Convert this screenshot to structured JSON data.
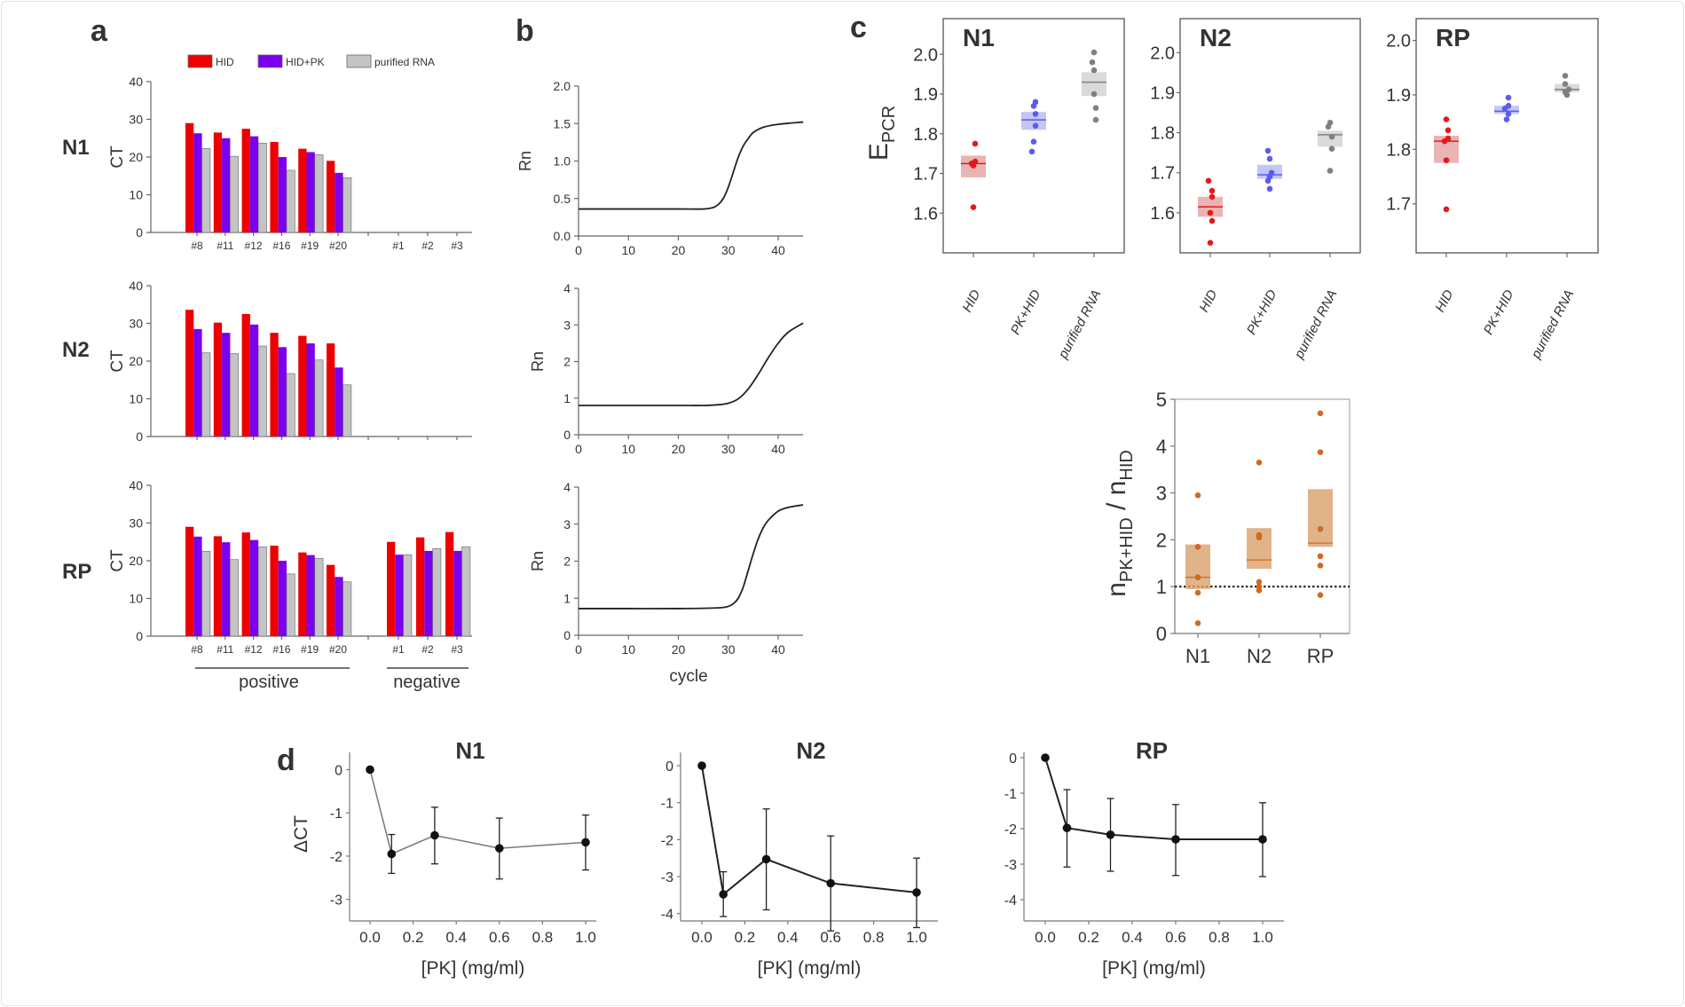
{
  "panel_labels": {
    "a": "a",
    "b": "b",
    "c": "c",
    "d": "d"
  },
  "colors": {
    "HID": "#ee0000",
    "HID+PK": "#7a00ee",
    "purified RNA": "#c4c4c4",
    "ratio": "#d2691e",
    "ratio_box": "#d9a06b",
    "line": "#111111"
  },
  "chart_data": [
    {
      "id": "a",
      "type": "bar",
      "legend": [
        "HID",
        "HID+PK",
        "purified RNA"
      ],
      "legend_placement": "top",
      "categories": [
        "#8",
        "#11",
        "#12",
        "#16",
        "#19",
        "#20",
        "#1",
        "#2",
        "#3"
      ],
      "groups": [
        {
          "label": "positive",
          "categories": [
            "#8",
            "#11",
            "#12",
            "#16",
            "#19",
            "#20"
          ]
        },
        {
          "label": "negative",
          "categories": [
            "#1",
            "#2",
            "#3"
          ]
        }
      ],
      "ylabel": "CT",
      "ylim": [
        0,
        40
      ],
      "yticks": [
        0,
        10,
        20,
        30,
        40
      ],
      "panels": [
        {
          "name": "N1",
          "series": [
            {
              "name": "HID",
              "values": [
                29,
                26.5,
                27.5,
                24,
                22.2,
                19,
                null,
                null,
                null
              ]
            },
            {
              "name": "HID+PK",
              "values": [
                26.3,
                25,
                25.5,
                20,
                21.3,
                15.8,
                null,
                null,
                null
              ]
            },
            {
              "name": "purified RNA",
              "values": [
                22.3,
                20.2,
                23.7,
                16.5,
                20.6,
                14.5,
                null,
                null,
                null
              ]
            }
          ]
        },
        {
          "name": "N2",
          "series": [
            {
              "name": "HID",
              "values": [
                33.6,
                30.2,
                32.5,
                27.5,
                26.7,
                24.7,
                null,
                null,
                null
              ]
            },
            {
              "name": "HID+PK",
              "values": [
                28.5,
                27.5,
                29.7,
                23.7,
                24.7,
                18.3,
                null,
                null,
                null
              ]
            },
            {
              "name": "purified RNA",
              "values": [
                22.2,
                22,
                24,
                16.7,
                20.3,
                13.7,
                null,
                null,
                null
              ]
            }
          ]
        },
        {
          "name": "RP",
          "series": [
            {
              "name": "HID",
              "values": [
                29,
                26.5,
                27.5,
                24,
                22.2,
                18.9,
                25,
                26.2,
                27.6
              ]
            },
            {
              "name": "HID+PK",
              "values": [
                26.4,
                24.9,
                25.5,
                20,
                21.5,
                15.7,
                21.6,
                22.6,
                22.6
              ]
            },
            {
              "name": "purified RNA",
              "values": [
                22.5,
                20.3,
                23.7,
                16.5,
                20.6,
                14.4,
                21.6,
                23.2,
                23.7
              ]
            }
          ]
        }
      ]
    },
    {
      "id": "b",
      "type": "line",
      "xlabel": "cycle",
      "ylabel": "Rn",
      "xlim": [
        0,
        45
      ],
      "xticks": [
        0,
        10,
        20,
        30,
        40
      ],
      "panels": [
        {
          "ylim": [
            0,
            2
          ],
          "yticks": [
            "0.0",
            "0.5",
            "1.0",
            "1.5",
            "2.0"
          ],
          "x": [
            0,
            10,
            20,
            25,
            27,
            28,
            29,
            30,
            31,
            32,
            33,
            34,
            35,
            37,
            40,
            45
          ],
          "y": [
            0.36,
            0.36,
            0.36,
            0.36,
            0.38,
            0.42,
            0.5,
            0.65,
            0.85,
            1.05,
            1.2,
            1.3,
            1.38,
            1.45,
            1.49,
            1.52
          ]
        },
        {
          "ylim": [
            0,
            4
          ],
          "yticks": [
            "0",
            "1",
            "2",
            "3",
            "4"
          ],
          "x": [
            0,
            10,
            20,
            25,
            28,
            30,
            32,
            34,
            36,
            38,
            40,
            42,
            45
          ],
          "y": [
            0.8,
            0.8,
            0.8,
            0.8,
            0.82,
            0.86,
            0.98,
            1.25,
            1.65,
            2.1,
            2.5,
            2.8,
            3.05
          ]
        },
        {
          "ylim": [
            0,
            4
          ],
          "yticks": [
            "0",
            "1",
            "2",
            "3",
            "4"
          ],
          "x": [
            0,
            10,
            20,
            28,
            30,
            31,
            32,
            33,
            34,
            35,
            36,
            37,
            38,
            40,
            42,
            45
          ],
          "y": [
            0.72,
            0.72,
            0.72,
            0.74,
            0.78,
            0.85,
            1.0,
            1.3,
            1.75,
            2.2,
            2.6,
            2.9,
            3.1,
            3.35,
            3.45,
            3.52
          ]
        }
      ]
    },
    {
      "id": "c-top",
      "type": "scatter",
      "ylabel": "E",
      "ylabel_sub": "PCR",
      "categories": [
        "HID",
        "PK+HID",
        "purified RNA"
      ],
      "panels": [
        {
          "name": "N1",
          "ylim": [
            1.5,
            2.09
          ],
          "yticks": [
            "1.6",
            "1.7",
            "1.8",
            "1.9",
            "2.0"
          ],
          "groups": [
            {
              "points": [
                1.775,
                1.73,
                1.725,
                1.72,
                1.615
              ],
              "median": 1.725,
              "box": [
                1.69,
                1.745
              ]
            },
            {
              "points": [
                1.88,
                1.87,
                1.85,
                1.82,
                1.78,
                1.755
              ],
              "median": 1.835,
              "box": [
                1.81,
                1.855
              ]
            },
            {
              "points": [
                2.005,
                1.98,
                1.96,
                1.9,
                1.865,
                1.835
              ],
              "median": 1.93,
              "box": [
                1.895,
                1.955
              ]
            }
          ]
        },
        {
          "name": "N2",
          "ylim": [
            1.5,
            2.085
          ],
          "yticks": [
            "1.6",
            "1.7",
            "1.8",
            "1.9",
            "2.0"
          ],
          "groups": [
            {
              "points": [
                1.68,
                1.655,
                1.64,
                1.6,
                1.58,
                1.525
              ],
              "median": 1.615,
              "box": [
                1.59,
                1.64
              ]
            },
            {
              "points": [
                1.755,
                1.735,
                1.7,
                1.69,
                1.68,
                1.66
              ],
              "median": 1.695,
              "box": [
                1.685,
                1.72
              ]
            },
            {
              "points": [
                1.825,
                1.815,
                1.79,
                1.76,
                1.705
              ],
              "median": 1.795,
              "box": [
                1.765,
                1.805
              ]
            }
          ]
        },
        {
          "name": "RP",
          "ylim": [
            1.61,
            2.04
          ],
          "yticks": [
            "1.7",
            "1.8",
            "1.9",
            "2.0"
          ],
          "groups": [
            {
              "points": [
                1.855,
                1.835,
                1.82,
                1.815,
                1.78,
                1.69
              ],
              "median": 1.815,
              "box": [
                1.775,
                1.825
              ]
            },
            {
              "points": [
                1.895,
                1.88,
                1.875,
                1.865,
                1.855
              ],
              "median": 1.87,
              "box": [
                1.865,
                1.88
              ]
            },
            {
              "points": [
                1.935,
                1.92,
                1.91,
                1.905,
                1.9
              ],
              "median": 1.91,
              "box": [
                1.905,
                1.92
              ]
            }
          ]
        }
      ],
      "group_colors": [
        "#e31a1c",
        "#5b5bf0",
        "#808080"
      ],
      "box_colors": [
        "#e8a7a7",
        "#b9bdf0",
        "#d3d3d3"
      ]
    },
    {
      "id": "c-bottom",
      "type": "scatter",
      "ylabel_parts": [
        "n",
        "PK+HID",
        " / n",
        "HID"
      ],
      "categories": [
        "N1",
        "N2",
        "RP"
      ],
      "ylim": [
        0,
        5
      ],
      "yticks": [
        "0",
        "1",
        "2",
        "3",
        "4",
        "5"
      ],
      "reference_line": 1,
      "groups": [
        {
          "points": [
            2.95,
            1.85,
            1.2,
            0.87,
            0.22
          ],
          "median": 1.2,
          "box": [
            0.95,
            1.9
          ]
        },
        {
          "points": [
            3.65,
            2.1,
            2.05,
            1.1,
            1.0,
            0.92
          ],
          "median": 1.57,
          "box": [
            1.38,
            2.25
          ]
        },
        {
          "points": [
            4.7,
            3.87,
            2.23,
            1.65,
            1.45,
            0.82
          ],
          "median": 1.93,
          "box": [
            1.85,
            3.08
          ]
        }
      ]
    },
    {
      "id": "d",
      "type": "line",
      "xlabel": "[PK] (mg/ml)",
      "ylabel": "ΔCT",
      "xlim": [
        -0.1,
        1.05
      ],
      "xticks": [
        "0.0",
        "0.2",
        "0.4",
        "0.6",
        "0.8",
        "1.0"
      ],
      "panels": [
        {
          "title": "N1",
          "ylim": [
            -3.5,
            0.4
          ],
          "yticks": [
            "0",
            "-1",
            "-2",
            "-3"
          ],
          "x": [
            0,
            0.1,
            0.3,
            0.6,
            1.0
          ],
          "y": [
            0,
            -1.95,
            -1.52,
            -1.82,
            -1.68
          ],
          "err_high": [
            null,
            -1.5,
            -0.87,
            -1.12,
            -1.05
          ],
          "err_low": [
            null,
            -2.4,
            -2.18,
            -2.53,
            -2.32
          ]
        },
        {
          "title": "N2",
          "ylim": [
            -4.2,
            0.36
          ],
          "yticks": [
            "0",
            "-1",
            "-2",
            "-3",
            "-4"
          ],
          "x": [
            0,
            0.1,
            0.3,
            0.6,
            1.0
          ],
          "y": [
            0,
            -3.48,
            -2.53,
            -3.18,
            -3.43
          ],
          "err_high": [
            null,
            -2.87,
            -1.17,
            -1.9,
            -2.5
          ],
          "err_low": [
            null,
            -4.08,
            -3.9,
            -4.47,
            -4.38
          ]
        },
        {
          "title": "RP",
          "ylim": [
            -4.6,
            0.15
          ],
          "yticks": [
            "0",
            "-1",
            "-2",
            "-3",
            "-4"
          ],
          "x": [
            0,
            0.1,
            0.3,
            0.6,
            1.0
          ],
          "y": [
            0,
            -1.98,
            -2.17,
            -2.3,
            -2.3
          ],
          "err_high": [
            null,
            -0.9,
            -1.15,
            -1.32,
            -1.27
          ],
          "err_low": [
            null,
            -3.08,
            -3.2,
            -3.32,
            -3.35
          ]
        }
      ]
    }
  ]
}
